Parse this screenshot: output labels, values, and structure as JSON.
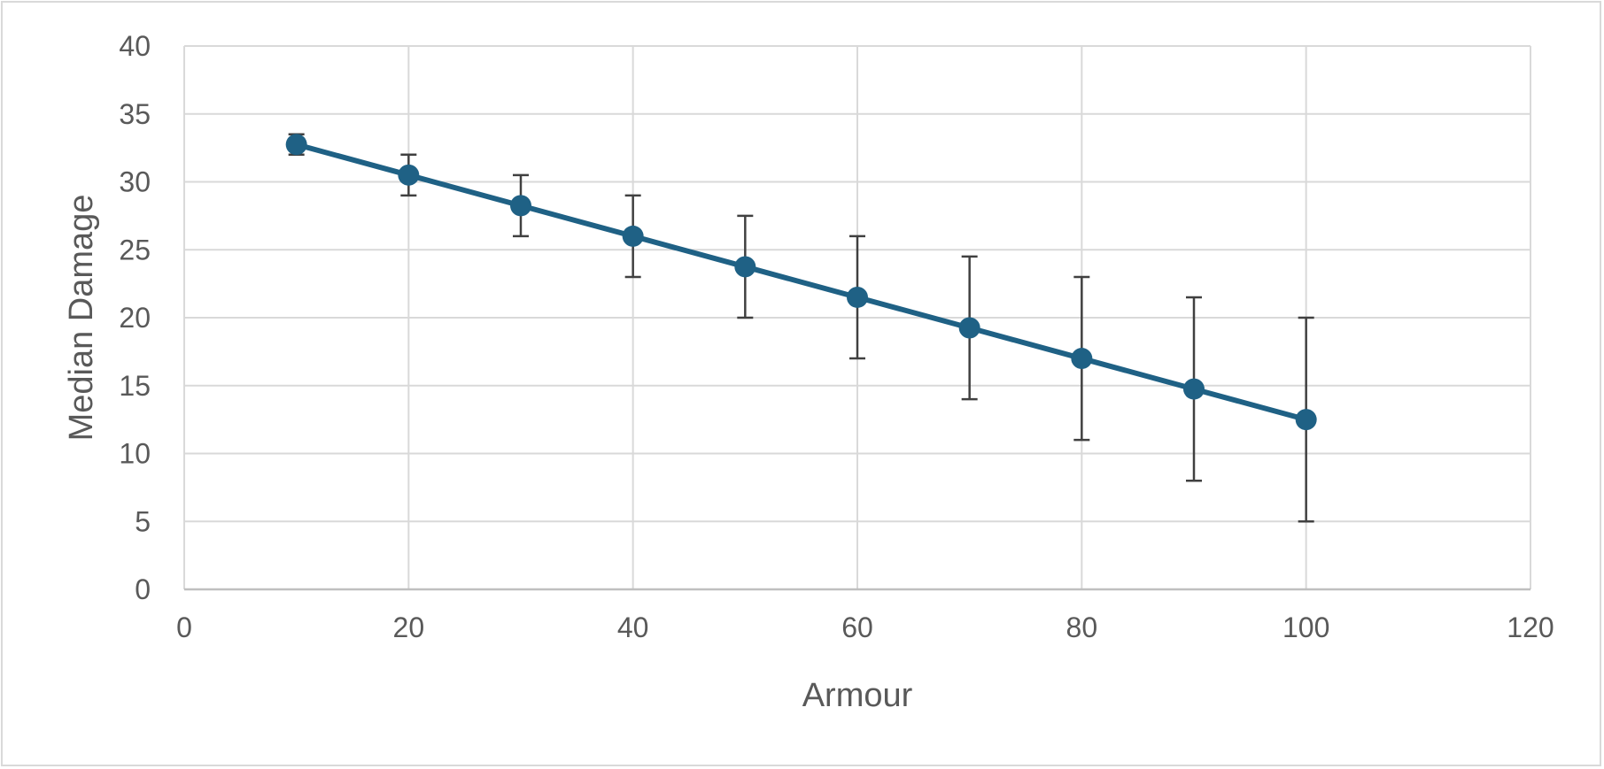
{
  "chart_data": {
    "type": "line",
    "title": "",
    "xlabel": "Armour",
    "ylabel": "Median Damage",
    "xlim": [
      0,
      120
    ],
    "ylim": [
      0,
      40
    ],
    "x_ticks": [
      0,
      20,
      40,
      60,
      80,
      100,
      120
    ],
    "y_ticks": [
      0,
      5,
      10,
      15,
      20,
      25,
      30,
      35,
      40
    ],
    "grid": true,
    "legend": "none",
    "series": [
      {
        "color": "#1f6185",
        "x": [
          10,
          20,
          30,
          40,
          50,
          60,
          70,
          80,
          90,
          100
        ],
        "y": [
          32.75,
          30.5,
          28.25,
          26,
          23.75,
          21.5,
          19.25,
          17,
          14.75,
          12.5
        ],
        "error_low": [
          32,
          29,
          26,
          23,
          20,
          17,
          14,
          11,
          8,
          5
        ],
        "error_high": [
          33.5,
          32,
          30.5,
          29,
          27.5,
          26,
          24.5,
          23,
          21.5,
          20
        ]
      }
    ]
  }
}
